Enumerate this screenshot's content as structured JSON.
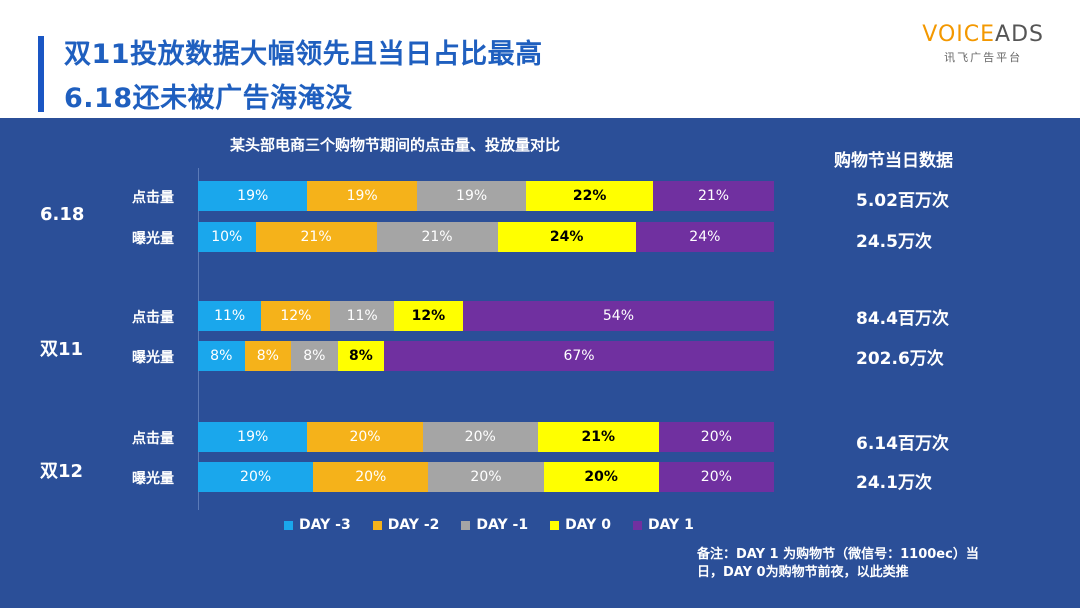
{
  "header": {
    "title_line1": "双11投放数据大幅领先且当日占比最高",
    "title_line2": "6.18还未被广告海淹没"
  },
  "logo": {
    "voice": "VOICE",
    "ads": "ADS",
    "sub": "讯飞广告平台"
  },
  "chart_data": {
    "type": "bar",
    "orientation": "horizontal",
    "stacked": "percent",
    "title": "某头部电商三个购物节期间的点击量、投放量对比",
    "series_names": [
      "DAY -3",
      "DAY -2",
      "DAY -1",
      "DAY 0",
      "DAY 1"
    ],
    "colors": [
      "#1aa7ec",
      "#f5b21a",
      "#a5a5a5",
      "#ffff00",
      "#7030a0"
    ],
    "label_colors": [
      "#ffffff",
      "#ffffff",
      "#ffffff",
      "#000000",
      "#ffffff"
    ],
    "groups": [
      {
        "name": "6.18",
        "rows": [
          {
            "label": "点击量",
            "values": [
              19,
              19,
              19,
              22,
              21
            ],
            "labels": [
              "19%",
              "19%",
              "19%",
              "22%",
              "21%"
            ]
          },
          {
            "label": "曝光量",
            "values": [
              10,
              21,
              21,
              24,
              24
            ],
            "labels": [
              "10%",
              "21%",
              "21%",
              "24%",
              "24%"
            ]
          }
        ]
      },
      {
        "name": "双11",
        "rows": [
          {
            "label": "点击量",
            "values": [
              11,
              12,
              11,
              12,
              54
            ],
            "labels": [
              "11%",
              "12%",
              "11%",
              "12%",
              "54%"
            ]
          },
          {
            "label": "曝光量",
            "values": [
              8,
              8,
              8,
              8,
              67
            ],
            "labels": [
              "8%",
              "8%",
              "8%",
              "8%",
              "67%"
            ]
          }
        ]
      },
      {
        "name": "双12",
        "rows": [
          {
            "label": "点击量",
            "values": [
              19,
              20,
              20,
              21,
              20
            ],
            "labels": [
              "19%",
              "20%",
              "20%",
              "21%",
              "20%"
            ]
          },
          {
            "label": "曝光量",
            "values": [
              20,
              20,
              20,
              20,
              20
            ],
            "labels": [
              "20%",
              "20%",
              "20%",
              "20%",
              "20%"
            ]
          }
        ]
      }
    ]
  },
  "side": {
    "title": "购物节当日数据",
    "values": [
      "5.02百万次",
      "24.5万次",
      "84.4百万次",
      "202.6万次",
      "6.14百万次",
      "24.1万次"
    ]
  },
  "note": {
    "line1": "备注：DAY 1 为购物节（微信号：1100ec）当",
    "line2": "日，DAY 0为购物节前夜，以此类推"
  },
  "watermark": "微信号：1100ec"
}
